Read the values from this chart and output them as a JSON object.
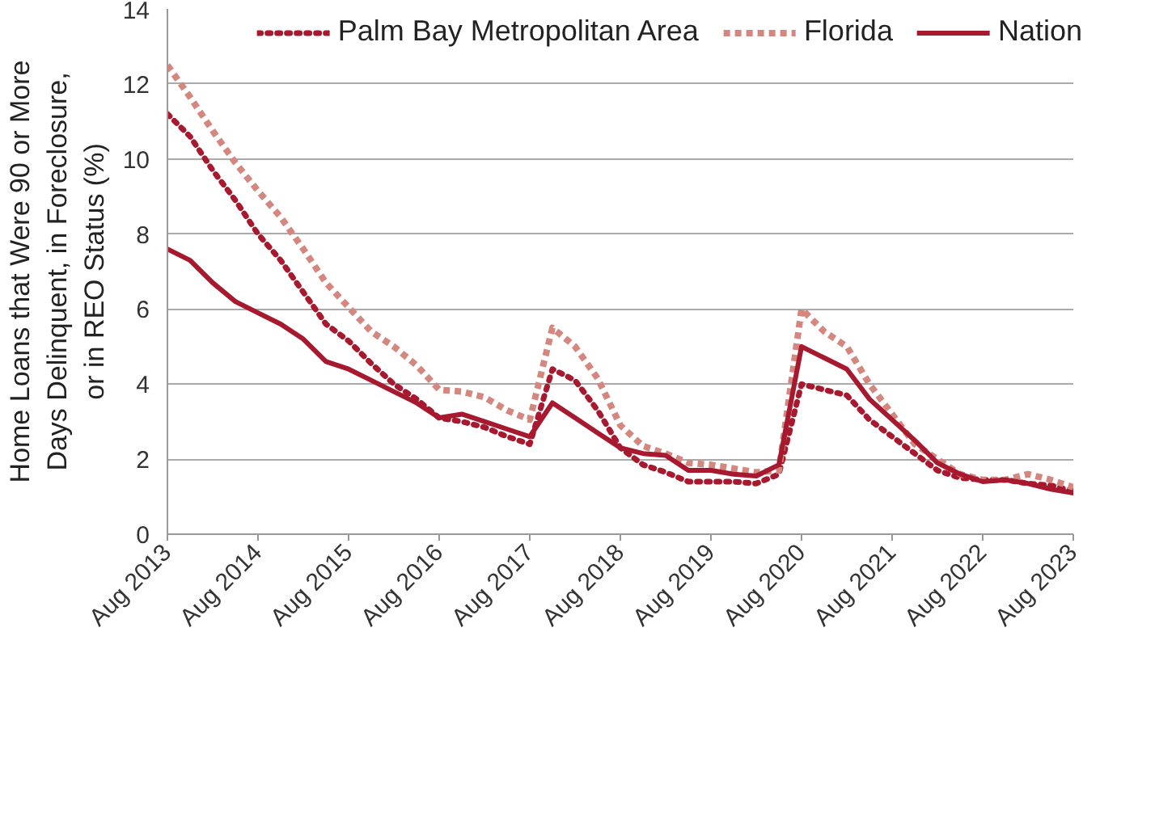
{
  "chart_data": {
    "type": "line",
    "ylabel": "Home Loans that Were 90 or More\nDays Delinquent, in Foreclosure,\nor in REO Status (%)",
    "x": [
      "2013-08",
      "2013-11",
      "2014-02",
      "2014-05",
      "2014-08",
      "2014-11",
      "2015-02",
      "2015-05",
      "2015-08",
      "2015-11",
      "2016-02",
      "2016-05",
      "2016-08",
      "2016-11",
      "2017-02",
      "2017-05",
      "2017-08",
      "2017-11",
      "2018-02",
      "2018-05",
      "2018-08",
      "2018-11",
      "2019-02",
      "2019-05",
      "2019-08",
      "2019-11",
      "2020-02",
      "2020-05",
      "2020-08",
      "2020-11",
      "2021-02",
      "2021-05",
      "2021-08",
      "2021-11",
      "2022-02",
      "2022-05",
      "2022-08",
      "2022-11",
      "2023-02",
      "2023-05",
      "2023-08"
    ],
    "series": [
      {
        "name": "Palm Bay Metropolitan Area",
        "color": "#a6192e",
        "line_style": "dotted",
        "values": [
          11.2,
          10.6,
          9.7,
          8.9,
          8.0,
          7.3,
          6.45,
          5.6,
          5.15,
          4.55,
          4.0,
          3.6,
          3.1,
          3.0,
          2.85,
          2.6,
          2.4,
          4.4,
          4.1,
          3.3,
          2.3,
          1.85,
          1.65,
          1.4,
          1.4,
          1.4,
          1.35,
          1.6,
          4.0,
          3.85,
          3.7,
          3.05,
          2.6,
          2.15,
          1.7,
          1.5,
          1.45,
          1.45,
          1.35,
          1.3,
          1.15
        ]
      },
      {
        "name": "Florida",
        "color": "#d4877f",
        "line_style": "dashed",
        "values": [
          12.5,
          11.65,
          10.75,
          9.9,
          9.15,
          8.45,
          7.6,
          6.7,
          6.05,
          5.4,
          5.0,
          4.5,
          3.85,
          3.8,
          3.65,
          3.3,
          3.05,
          5.5,
          5.0,
          4.15,
          2.9,
          2.35,
          2.15,
          1.9,
          1.85,
          1.75,
          1.65,
          1.7,
          6.0,
          5.4,
          5.0,
          4.0,
          3.2,
          2.4,
          2.0,
          1.6,
          1.45,
          1.45,
          1.6,
          1.45,
          1.25
        ]
      },
      {
        "name": "Nation",
        "color": "#a6192e",
        "line_style": "solid",
        "values": [
          7.6,
          7.3,
          6.7,
          6.2,
          5.9,
          5.6,
          5.2,
          4.6,
          4.4,
          4.1,
          3.8,
          3.5,
          3.1,
          3.2,
          3.0,
          2.8,
          2.6,
          3.5,
          3.1,
          2.7,
          2.3,
          2.15,
          2.1,
          1.7,
          1.7,
          1.6,
          1.55,
          1.85,
          5.0,
          4.7,
          4.4,
          3.6,
          3.05,
          2.5,
          1.9,
          1.6,
          1.4,
          1.45,
          1.35,
          1.2,
          1.1
        ]
      }
    ],
    "xlim": [
      "2013-08",
      "2023-08"
    ],
    "xticks": [
      {
        "value": "2013-08",
        "label": "Aug 2013"
      },
      {
        "value": "2014-08",
        "label": "Aug 2014"
      },
      {
        "value": "2015-08",
        "label": "Aug 2015"
      },
      {
        "value": "2016-08",
        "label": "Aug 2016"
      },
      {
        "value": "2017-08",
        "label": "Aug 2017"
      },
      {
        "value": "2018-08",
        "label": "Aug 2018"
      },
      {
        "value": "2019-08",
        "label": "Aug 2019"
      },
      {
        "value": "2020-08",
        "label": "Aug 2020"
      },
      {
        "value": "2021-08",
        "label": "Aug 2021"
      },
      {
        "value": "2022-08",
        "label": "Aug 2022"
      },
      {
        "value": "2023-08",
        "label": "Aug 2023"
      }
    ],
    "ylim": [
      0,
      14
    ],
    "yticks": [
      0,
      2,
      4,
      6,
      8,
      10,
      12,
      14
    ],
    "grid": "y",
    "legend": "top"
  }
}
